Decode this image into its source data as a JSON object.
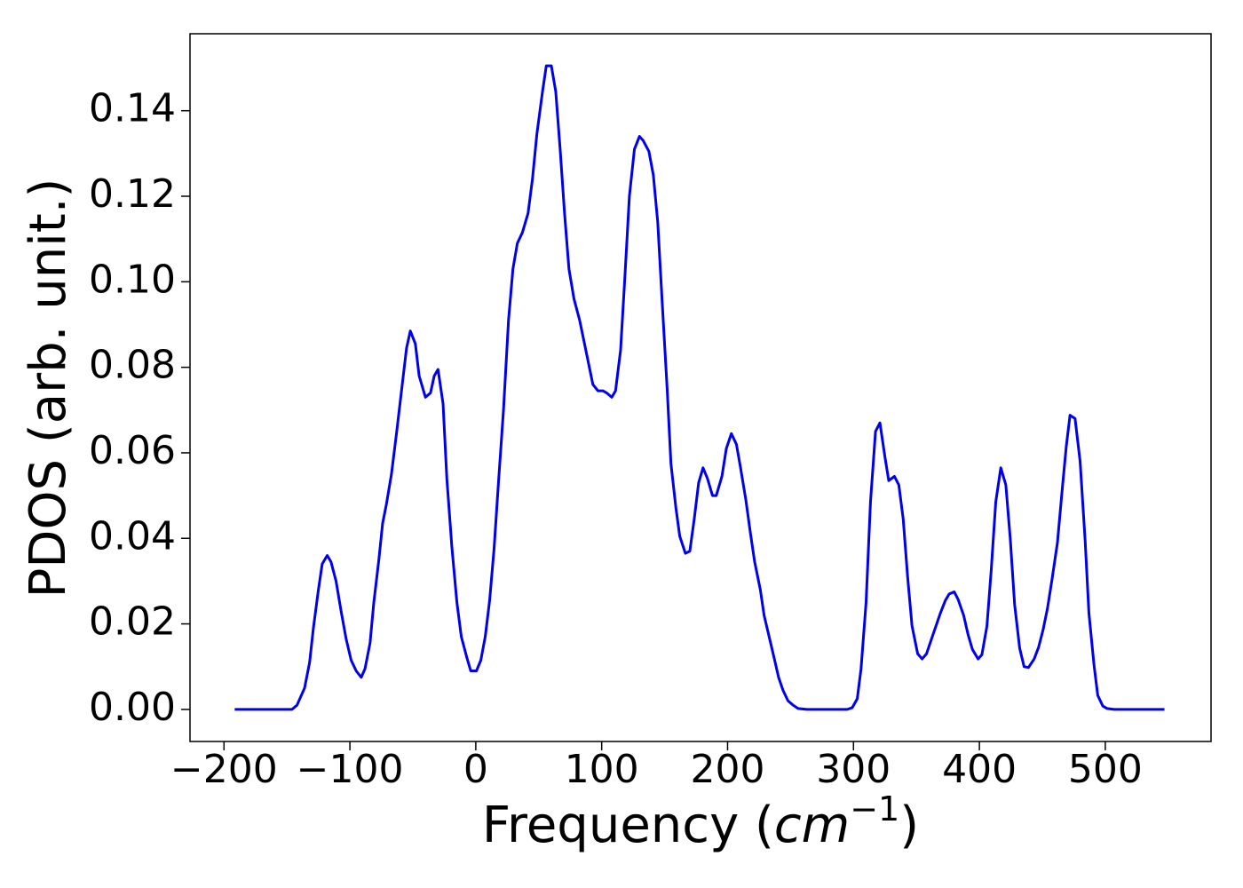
{
  "chart_data": {
    "type": "line",
    "ylabel": "PDOS (arb. unit.)",
    "xlabel": [
      "Frequency (",
      "cm",
      "−1",
      ")"
    ],
    "color": "#0000ee",
    "x": [
      -191.5,
      -146,
      -142,
      -136,
      -132,
      -129,
      -125,
      -122,
      -118,
      -115,
      -111,
      -107,
      -103,
      -99,
      -95,
      -91,
      -88,
      -84,
      -81,
      -77,
      -74,
      -71,
      -67,
      -63,
      -59,
      -55,
      -52,
      -48,
      -45,
      -40,
      -36,
      -33,
      -30,
      -26,
      -23,
      -19,
      -15,
      -11.5,
      -7,
      -4,
      0.5,
      4,
      7.5,
      11,
      14.5,
      18,
      22,
      26,
      29.5,
      33,
      37,
      41.5,
      45,
      48.5,
      53,
      56,
      60,
      63.5,
      67,
      70.5,
      74,
      78,
      82.5,
      86,
      89.5,
      93,
      97,
      101,
      104,
      108,
      111,
      115,
      118.5,
      122,
      126,
      130,
      133,
      137.5,
      141,
      144.5,
      148,
      152,
      155,
      159,
      162,
      166.5,
      170,
      173.5,
      177,
      180.5,
      184,
      188,
      191,
      195.5,
      199,
      203,
      207,
      210,
      214.5,
      218,
      221.5,
      226,
      229,
      233,
      237,
      240.5,
      244,
      248,
      252,
      256,
      263,
      295,
      299,
      303,
      306,
      310,
      313.5,
      317.5,
      321,
      325,
      328,
      332.5,
      336,
      339.5,
      343,
      346.5,
      351,
      354.5,
      358,
      362,
      365.5,
      369,
      373,
      376,
      380,
      383,
      387.5,
      391,
      394.5,
      399,
      402,
      406,
      409.5,
      413,
      417,
      421,
      424.5,
      428,
      432,
      435.5,
      439,
      443.5,
      447,
      450.5,
      454,
      457.5,
      462,
      465.5,
      469,
      472,
      476,
      480,
      484,
      487,
      491,
      494,
      498,
      501.5,
      507,
      547
    ],
    "values": [
      0,
      0,
      0.001,
      0.005,
      0.011,
      0.019,
      0.028,
      0.034,
      0.036,
      0.0345,
      0.03,
      0.023,
      0.0165,
      0.0115,
      0.009,
      0.0075,
      0.0095,
      0.0155,
      0.025,
      0.035,
      0.0435,
      0.048,
      0.055,
      0.0645,
      0.0745,
      0.0845,
      0.0885,
      0.0855,
      0.078,
      0.073,
      0.074,
      0.078,
      0.0795,
      0.0715,
      0.054,
      0.038,
      0.025,
      0.017,
      0.012,
      0.009,
      0.009,
      0.0115,
      0.017,
      0.0255,
      0.0375,
      0.053,
      0.07,
      0.091,
      0.103,
      0.109,
      0.1115,
      0.116,
      0.124,
      0.1345,
      0.1445,
      0.1505,
      0.1505,
      0.1445,
      0.131,
      0.116,
      0.103,
      0.096,
      0.091,
      0.086,
      0.081,
      0.076,
      0.0745,
      0.0745,
      0.074,
      0.073,
      0.0745,
      0.084,
      0.1015,
      0.12,
      0.131,
      0.134,
      0.133,
      0.1305,
      0.125,
      0.114,
      0.0955,
      0.075,
      0.0575,
      0.047,
      0.0405,
      0.0365,
      0.037,
      0.0445,
      0.053,
      0.0565,
      0.054,
      0.05,
      0.05,
      0.0545,
      0.061,
      0.0645,
      0.062,
      0.057,
      0.049,
      0.0415,
      0.0345,
      0.028,
      0.022,
      0.017,
      0.012,
      0.0075,
      0.0045,
      0.002,
      0.001,
      0.0002,
      0,
      0,
      0.0004,
      0.0025,
      0.0095,
      0.025,
      0.0485,
      0.065,
      0.067,
      0.059,
      0.0535,
      0.0545,
      0.0525,
      0.0445,
      0.031,
      0.0195,
      0.013,
      0.0118,
      0.013,
      0.0165,
      0.0195,
      0.0225,
      0.0255,
      0.027,
      0.0275,
      0.0258,
      0.022,
      0.0175,
      0.014,
      0.0118,
      0.0128,
      0.0195,
      0.033,
      0.0485,
      0.0565,
      0.0525,
      0.04,
      0.0245,
      0.0143,
      0.01,
      0.0098,
      0.0118,
      0.0145,
      0.0185,
      0.0235,
      0.03,
      0.039,
      0.0505,
      0.0615,
      0.0688,
      0.068,
      0.058,
      0.0395,
      0.0225,
      0.0105,
      0.0033,
      0.0008,
      0.0002,
      0,
      0
    ],
    "xlim": [
      -227,
      584
    ],
    "ylim": [
      -0.0075,
      0.158
    ],
    "xticks": [
      {
        "value": -200,
        "label": "−200"
      },
      {
        "value": -100,
        "label": "−100"
      },
      0,
      100,
      200,
      300,
      400,
      500
    ],
    "yticks": [
      {
        "value": 0,
        "label": "0.00"
      },
      0.02,
      0.04,
      0.06,
      0.08,
      {
        "value": 0.1,
        "label": "0.10"
      },
      0.12,
      0.14
    ]
  }
}
